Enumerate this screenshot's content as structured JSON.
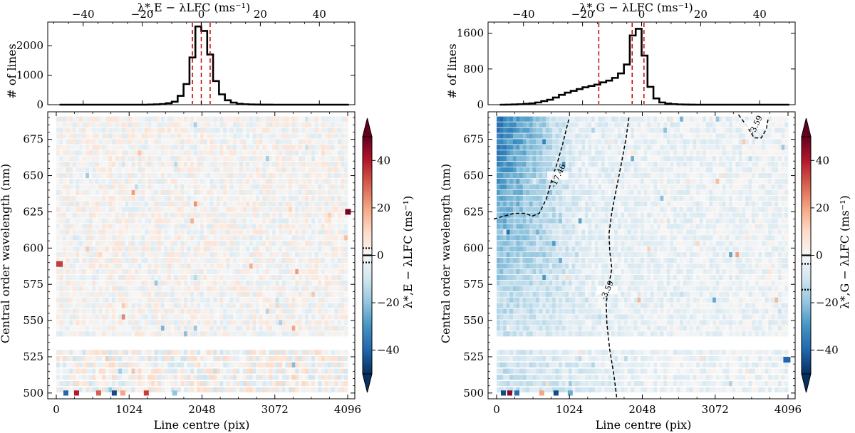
{
  "chart_data": [
    {
      "panel": "left",
      "type": "histogram",
      "title": "λ*,E − λLFC (ms⁻¹)",
      "xlabel": "λ*,E − λLFC (ms⁻¹)",
      "ylabel": "# of lines",
      "xlim": [
        -52,
        52
      ],
      "ylim": [
        0,
        2800
      ],
      "xticks": [
        "−40",
        "−20",
        "0",
        "20",
        "40"
      ],
      "xtick_values": [
        -40,
        -20,
        0,
        20,
        40
      ],
      "yticks": [
        "0",
        "1000",
        "2000"
      ],
      "ytick_values": [
        0,
        1000,
        2000
      ],
      "bin_edges": [
        -48,
        -46,
        -44,
        -42,
        -40,
        -38,
        -36,
        -34,
        -32,
        -30,
        -28,
        -26,
        -24,
        -22,
        -20,
        -18,
        -16,
        -14,
        -12,
        -10,
        -8,
        -6,
        -4,
        -2,
        0,
        2,
        4,
        6,
        8,
        10,
        12,
        14,
        16,
        18,
        20,
        22,
        24,
        26,
        28,
        30,
        32,
        34,
        36,
        38,
        40,
        42,
        44,
        46,
        48,
        50
      ],
      "counts": [
        0,
        0,
        0,
        0,
        0,
        0,
        0,
        0,
        0,
        0,
        0,
        0,
        0,
        0,
        0,
        5,
        10,
        20,
        50,
        100,
        300,
        700,
        1600,
        2650,
        2500,
        1700,
        800,
        350,
        150,
        70,
        30,
        15,
        8,
        4,
        2,
        1,
        0,
        0,
        0,
        0,
        0,
        0,
        0,
        0,
        0,
        0,
        0,
        0,
        0
      ],
      "vlines": [
        -3,
        0,
        3
      ]
    },
    {
      "panel": "left",
      "type": "heatmap",
      "xlabel": "Line centre (pix)",
      "ylabel": "Central order wavelength (nm)",
      "xlim": [
        -120,
        4196
      ],
      "ylim": [
        496,
        694
      ],
      "xticks": [
        "0",
        "1024",
        "2048",
        "3072",
        "4096"
      ],
      "xtick_values": [
        0,
        1024,
        2048,
        3072,
        4096
      ],
      "yticks": [
        "500",
        "525",
        "550",
        "575",
        "600",
        "625",
        "650",
        "675"
      ],
      "ytick_values": [
        500,
        525,
        550,
        575,
        600,
        625,
        650,
        675
      ],
      "colorbar_label": "λ*,E − λLFC (ms⁻¹)",
      "colorbar_ticks": [
        "−40",
        "−20",
        "0",
        "20",
        "40"
      ],
      "colorbar_tick_values": [
        -40,
        -20,
        0,
        20,
        40
      ],
      "colorbar_range": [
        -50,
        50
      ],
      "colorbar_marks": [
        {
          "value": 0,
          "style": "solid"
        },
        {
          "value": -3,
          "style": "dotted"
        },
        {
          "value": 3,
          "style": "dotted"
        }
      ]
    },
    {
      "panel": "right",
      "type": "histogram",
      "title": "λ*,G − λLFC (ms⁻¹)",
      "xlabel": "λ*,G − λLFC (ms⁻¹)",
      "ylabel": "# of lines",
      "xlim": [
        -52,
        52
      ],
      "ylim": [
        0,
        1850
      ],
      "xticks": [
        "−40",
        "−20",
        "0",
        "20",
        "40"
      ],
      "xtick_values": [
        -40,
        -20,
        0,
        20,
        40
      ],
      "yticks": [
        "0",
        "800",
        "1600"
      ],
      "ytick_values": [
        0,
        800,
        1600
      ],
      "bin_edges": [
        -48,
        -46,
        -44,
        -42,
        -40,
        -38,
        -36,
        -34,
        -32,
        -30,
        -28,
        -26,
        -24,
        -22,
        -20,
        -18,
        -16,
        -14,
        -12,
        -10,
        -8,
        -6,
        -4,
        -2,
        0,
        2,
        4,
        6,
        8,
        10,
        12,
        14,
        16,
        18,
        20,
        22,
        24,
        26,
        28,
        30,
        32,
        34,
        36,
        38,
        40,
        42,
        44,
        46,
        48,
        50
      ],
      "counts": [
        0,
        2,
        5,
        10,
        20,
        30,
        50,
        80,
        110,
        160,
        220,
        270,
        310,
        350,
        390,
        420,
        450,
        500,
        540,
        600,
        700,
        900,
        1550,
        1700,
        1100,
        400,
        140,
        50,
        25,
        12,
        6,
        3,
        1,
        0,
        0,
        0,
        0,
        0,
        0,
        0,
        0,
        0,
        0,
        0,
        0,
        0,
        0,
        0,
        0
      ],
      "vlines": [
        -14.5,
        -3.2,
        0.8
      ]
    },
    {
      "panel": "right",
      "type": "heatmap",
      "xlabel": "Line centre (pix)",
      "ylabel": "Central order wavelength (nm)",
      "xlim": [
        -120,
        4196
      ],
      "ylim": [
        496,
        694
      ],
      "xticks": [
        "0",
        "1024",
        "2048",
        "3072",
        "4096"
      ],
      "xtick_values": [
        0,
        1024,
        2048,
        3072,
        4096
      ],
      "yticks": [
        "500",
        "525",
        "550",
        "575",
        "600",
        "625",
        "650",
        "675"
      ],
      "ytick_values": [
        500,
        525,
        550,
        575,
        600,
        625,
        650,
        675
      ],
      "colorbar_label": "λ*,G − λLFC (ms⁻¹)",
      "colorbar_ticks": [
        "−40",
        "−20",
        "0",
        "20",
        "40"
      ],
      "colorbar_tick_values": [
        -40,
        -20,
        0,
        20,
        40
      ],
      "colorbar_range": [
        -50,
        50
      ],
      "colorbar_marks": [
        {
          "value": 0,
          "style": "solid"
        },
        {
          "value": -3.6,
          "style": "dotted"
        },
        {
          "value": -14.5,
          "style": "dotted"
        }
      ],
      "contours": [
        {
          "label": "-17.46",
          "label_at": [
            860,
            650
          ],
          "points": [
            [
              -40,
              620
            ],
            [
              100,
              622
            ],
            [
              250,
              624
            ],
            [
              400,
              624
            ],
            [
              500,
              622
            ],
            [
              600,
              624
            ],
            [
              700,
              634
            ],
            [
              780,
              648
            ],
            [
              860,
              660
            ],
            [
              930,
              672
            ],
            [
              990,
              684
            ],
            [
              1020,
              690
            ]
          ]
        },
        {
          "label": "-3.59",
          "label_at": [
            1550,
            571
          ],
          "points": [
            [
              1860,
              690
            ],
            [
              1820,
              676
            ],
            [
              1760,
              660
            ],
            [
              1680,
              640
            ],
            [
              1620,
              625
            ],
            [
              1580,
              610
            ],
            [
              1590,
              598
            ],
            [
              1620,
              586
            ],
            [
              1580,
              575
            ],
            [
              1540,
              562
            ],
            [
              1550,
              548
            ],
            [
              1590,
              530
            ],
            [
              1650,
              512
            ],
            [
              1680,
              500
            ],
            [
              1690,
              496
            ]
          ]
        },
        {
          "label": "-3.59",
          "label_at": [
            3640,
            685
          ],
          "points": [
            [
              3400,
              692
            ],
            [
              3520,
              684
            ],
            [
              3620,
              676
            ],
            [
              3720,
              676
            ],
            [
              3790,
              682
            ],
            [
              3820,
              690
            ]
          ]
        }
      ]
    }
  ]
}
